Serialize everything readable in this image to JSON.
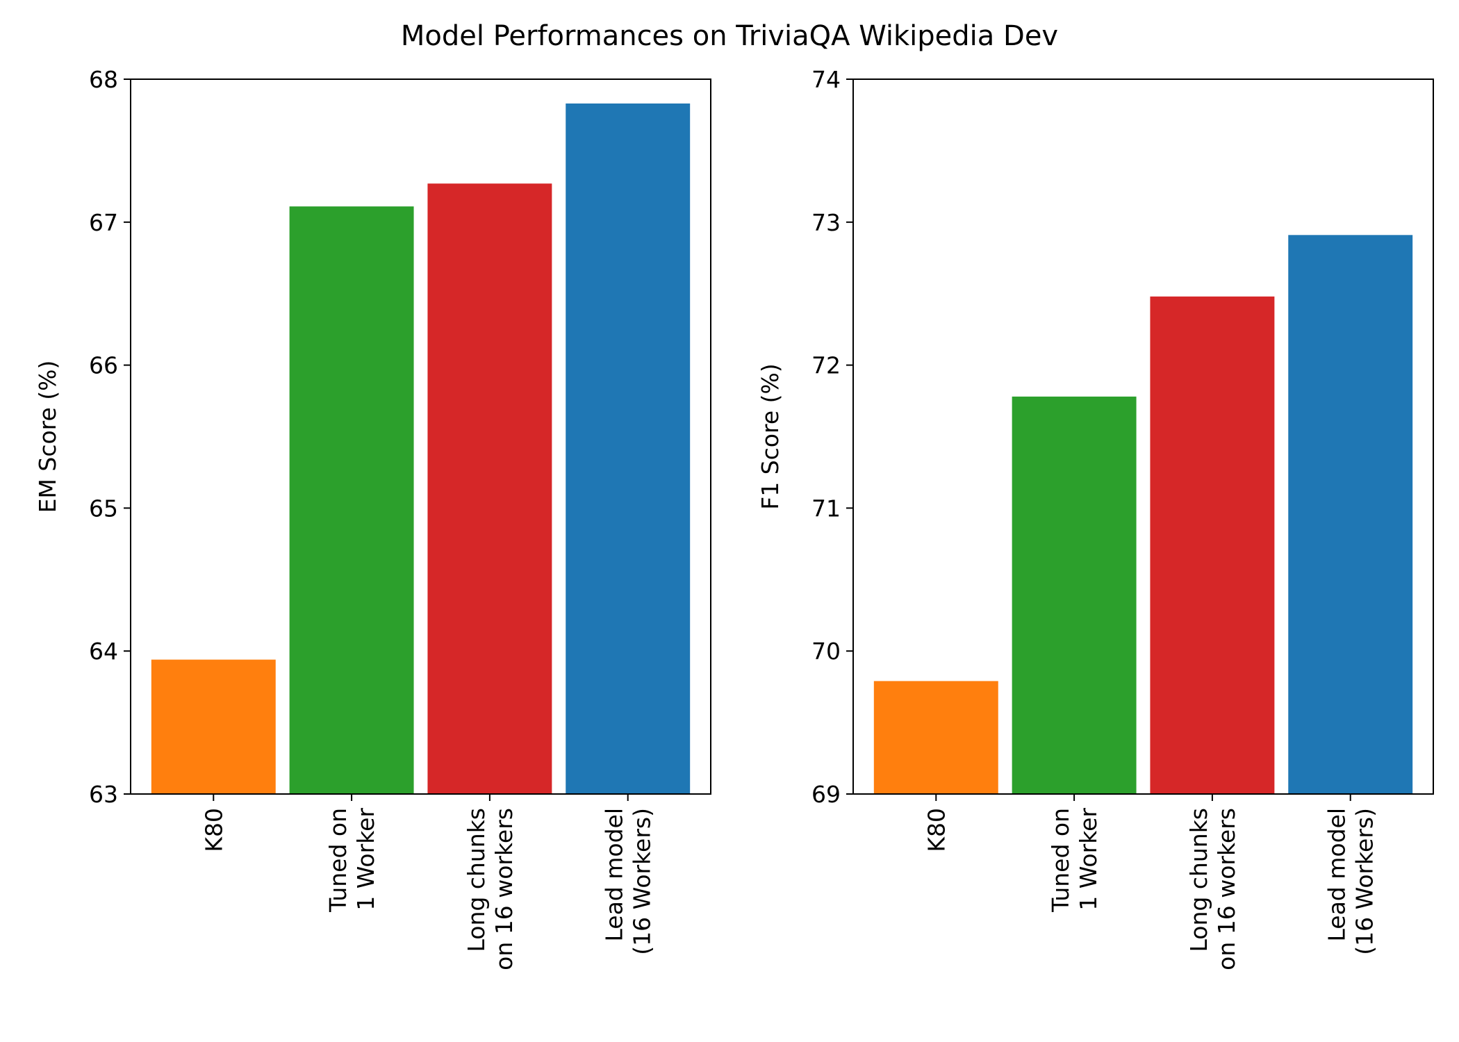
{
  "figure_title": "Model Performances on TriviaQA Wikipedia Dev",
  "chart_data": [
    {
      "type": "bar",
      "categories": [
        [
          "K80"
        ],
        [
          "Tuned on",
          "1 Worker"
        ],
        [
          "Long chunks",
          "on 16 workers"
        ],
        [
          "Lead model",
          "(16 Workers)"
        ]
      ],
      "values": [
        63.94,
        67.11,
        67.27,
        67.83
      ],
      "colors": [
        "#ff7f0e",
        "#2ca02c",
        "#d62728",
        "#1f77b4"
      ],
      "title": "",
      "xlabel": "",
      "ylabel": "EM Score (%)",
      "ylim": [
        63,
        68
      ],
      "yticks": [
        "63",
        "64",
        "65",
        "66",
        "67",
        "68"
      ],
      "grid": false
    },
    {
      "type": "bar",
      "categories": [
        [
          "K80"
        ],
        [
          "Tuned on",
          "1 Worker"
        ],
        [
          "Long chunks",
          "on 16 workers"
        ],
        [
          "Lead model",
          "(16 Workers)"
        ]
      ],
      "values": [
        69.79,
        71.78,
        72.48,
        72.91
      ],
      "colors": [
        "#ff7f0e",
        "#2ca02c",
        "#d62728",
        "#1f77b4"
      ],
      "title": "",
      "xlabel": "",
      "ylabel": "F1 Score (%)",
      "ylim": [
        69,
        74
      ],
      "yticks": [
        "69",
        "70",
        "71",
        "72",
        "73",
        "74"
      ],
      "grid": false
    }
  ]
}
